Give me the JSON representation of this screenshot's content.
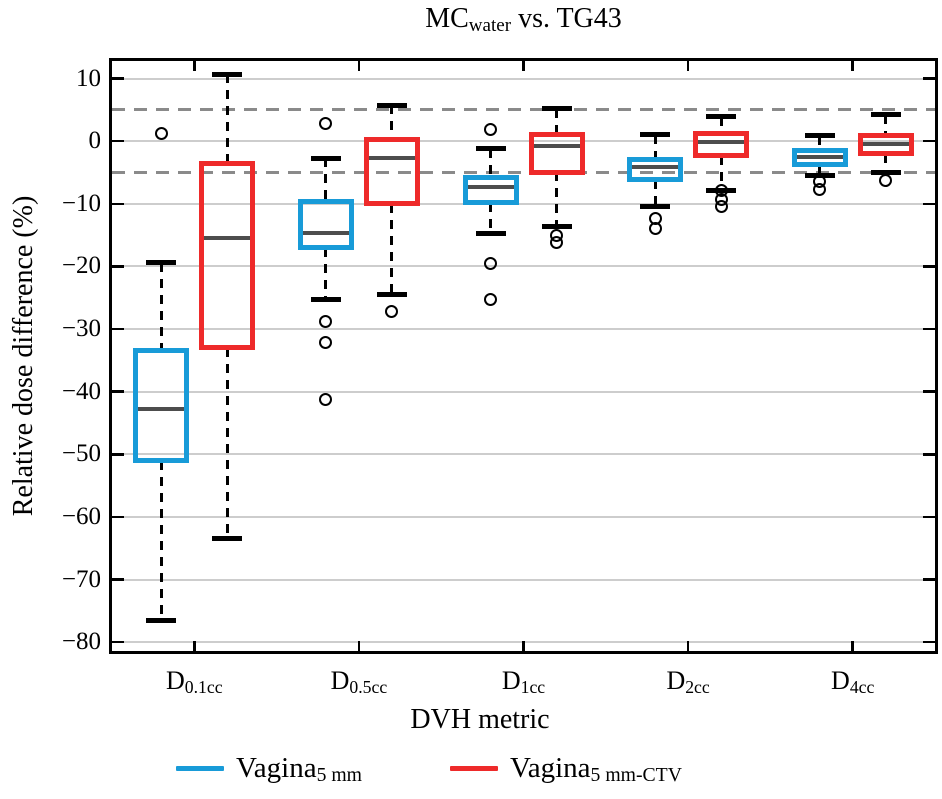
{
  "chart_data": {
    "type": "box",
    "title": {
      "base": "MC",
      "sub": "water",
      "rest": " vs. TG43"
    },
    "ylabel": "Relative dose difference (%)",
    "xlabel": "DVH metric",
    "ylim": [
      -81.4,
      12.8
    ],
    "yticks": [
      10,
      0,
      -10,
      -20,
      -30,
      -40,
      -50,
      -60,
      -70,
      -80
    ],
    "ytick_labels": [
      "10",
      "0",
      "−10",
      "−20",
      "−30",
      "−40",
      "−50",
      "−60",
      "−70",
      "−80"
    ],
    "grid_values": [
      10,
      0,
      -10,
      -20,
      -30,
      -40,
      -50,
      -60,
      -70,
      -80
    ],
    "ref_lines": [
      5,
      -5
    ],
    "grid_on": true,
    "legend_position": "below",
    "categories": [
      {
        "base": "D",
        "sub": "0.1cc"
      },
      {
        "base": "D",
        "sub": "0.5cc"
      },
      {
        "base": "D",
        "sub": "1cc"
      },
      {
        "base": "D",
        "sub": "2cc"
      },
      {
        "base": "D",
        "sub": "4cc"
      }
    ],
    "series": [
      {
        "name_base": "Vagina",
        "name_sub": "5 mm",
        "color": "#189bd8",
        "boxes": [
          {
            "low": -76.5,
            "q1": -51.0,
            "median": -42.7,
            "q3": -33.5,
            "high": -19.4,
            "outliers": [
              1.3
            ]
          },
          {
            "low": -25.2,
            "q1": -17.0,
            "median": -14.6,
            "q3": -9.6,
            "high": -2.7,
            "outliers": [
              2.9,
              -28.8,
              -32.2,
              -41.2
            ]
          },
          {
            "low": -14.8,
            "q1": -9.8,
            "median": -7.3,
            "q3": -5.8,
            "high": -1.2,
            "outliers": [
              1.8,
              -19.5,
              -25.2
            ]
          },
          {
            "low": -10.4,
            "q1": -6.2,
            "median": -4.1,
            "q3": -3.0,
            "high": 1.0,
            "outliers": [
              -12.4,
              -13.9
            ]
          },
          {
            "low": -5.5,
            "q1": -3.8,
            "median": -2.5,
            "q3": -1.5,
            "high": 0.9,
            "outliers": [
              -6.5,
              -7.7
            ]
          }
        ]
      },
      {
        "name_base": "Vagina",
        "name_sub": "5 mm-CTV",
        "color": "#ee2a2a",
        "boxes": [
          {
            "low": -63.5,
            "q1": -33.0,
            "median": -15.5,
            "q3": -3.6,
            "high": 10.7,
            "outliers": []
          },
          {
            "low": -24.5,
            "q1": -10.0,
            "median": -2.7,
            "q3": 0.3,
            "high": 5.7,
            "outliers": [
              -27.2
            ]
          },
          {
            "low": -13.7,
            "q1": -5.0,
            "median": -0.8,
            "q3": 1.0,
            "high": 5.2,
            "outliers": [
              -15.0,
              -16.1
            ]
          },
          {
            "low": -7.8,
            "q1": -2.3,
            "median": -0.2,
            "q3": 1.2,
            "high": 3.9,
            "outliers": [
              -7.8,
              -9.3,
              -10.5
            ]
          },
          {
            "low": -5.0,
            "q1": -2.0,
            "median": -0.4,
            "q3": 0.9,
            "high": 4.2,
            "outliers": [
              -6.3
            ]
          }
        ]
      }
    ],
    "colors": {
      "median": "#4d4d4d",
      "grid": "#cdcdcd",
      "ref_dash": "#8a8a8a",
      "whisker": "#000000",
      "frame": "#000000"
    }
  }
}
